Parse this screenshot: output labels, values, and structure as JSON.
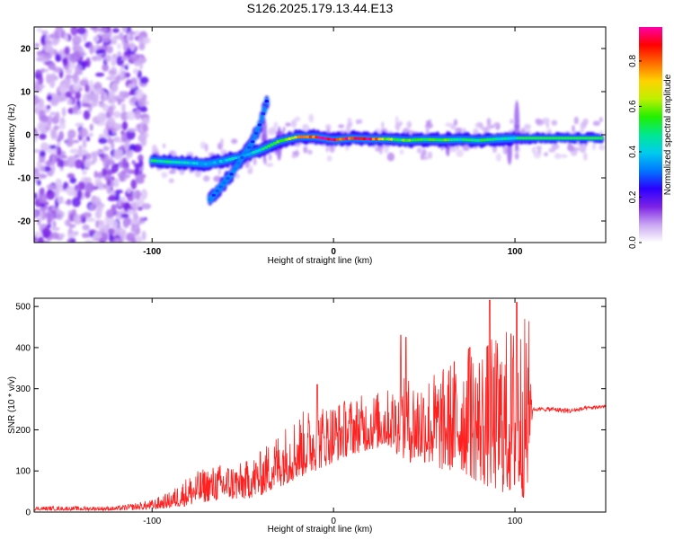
{
  "title": "S126.2025.179.13.44.E13",
  "chart_data": [
    {
      "type": "heatmap",
      "xlabel": "Height of straight line (km)",
      "ylabel": "Frequency (Hz)",
      "xlim": [
        -165,
        150
      ],
      "ylim": [
        -25,
        25
      ],
      "xticks": [
        -100,
        0,
        100
      ],
      "yticks": [
        -20,
        -10,
        0,
        10,
        20
      ],
      "ytick_labels": [
        "-20",
        "-10",
        "0",
        "10",
        "20"
      ],
      "colorbar": {
        "label": "Normalized spectral amplitude",
        "range": [
          0.0,
          0.95
        ],
        "ticks": [
          0.0,
          0.2,
          0.4,
          0.6,
          0.8
        ],
        "tick_labels": [
          "0.0",
          "0.2",
          "0.4",
          "0.6",
          "0.8"
        ],
        "colormap": [
          "#ffffff",
          "#c9a6f2",
          "#7d22e6",
          "#2b00ff",
          "#0077ff",
          "#00ccee",
          "#00e890",
          "#22f000",
          "#bff000",
          "#ffd200",
          "#ff6a00",
          "#ff0000",
          "#ff00aa"
        ]
      },
      "tracks": [
        {
          "x": [
            -100,
            -90,
            -80,
            -70,
            -60,
            -50,
            -40,
            -30,
            -20,
            -10,
            0,
            10,
            20,
            30,
            40,
            50,
            60,
            70,
            80,
            90,
            100,
            110,
            120,
            130,
            140,
            148
          ],
          "y": [
            -6,
            -6.3,
            -6.5,
            -6.8,
            -6,
            -5,
            -3.5,
            -1.5,
            -0.5,
            -0.5,
            -1.2,
            -0.8,
            -1,
            -1,
            -1.3,
            -1.1,
            -1.2,
            -1.1,
            -1.3,
            -1,
            -0.8,
            -0.8,
            -0.8,
            -0.8,
            -0.8,
            -0.8
          ],
          "amplitude": [
            0.5,
            0.45,
            0.4,
            0.35,
            0.4,
            0.4,
            0.45,
            0.55,
            0.75,
            0.85,
            0.95,
            0.85,
            0.9,
            0.6,
            0.55,
            0.55,
            0.55,
            0.5,
            0.5,
            0.45,
            0.45,
            0.5,
            0.5,
            0.5,
            0.5,
            0.5
          ]
        },
        {
          "x": [
            -68,
            -62,
            -56,
            -50,
            -45,
            -40,
            -36
          ],
          "y": [
            -15,
            -12,
            -9,
            -5,
            -2,
            3,
            9
          ],
          "amplitude": [
            0.3,
            0.3,
            0.3,
            0.3,
            0.3,
            0.3,
            0.25
          ]
        }
      ],
      "noise_region": {
        "x": [
          -165,
          -103
        ],
        "y": [
          -25,
          25
        ]
      }
    },
    {
      "type": "line",
      "xlabel": "Height of straight line (km)",
      "ylabel": "SNR (10 * v/v)",
      "xlim": [
        -165,
        150
      ],
      "ylim": [
        0,
        520
      ],
      "xticks": [
        -100,
        0,
        100
      ],
      "yticks": [
        0,
        100,
        200,
        300,
        400,
        500
      ],
      "line_color": "#ff2020",
      "envelope": {
        "x": [
          -165,
          -120,
          -100,
          -90,
          -80,
          -70,
          -60,
          -50,
          -40,
          -30,
          -20,
          -10,
          0,
          10,
          20,
          30,
          40,
          50,
          60,
          70,
          80,
          90,
          100,
          108,
          110,
          120,
          130,
          140,
          150
        ],
        "lower": [
          4,
          4,
          6,
          10,
          15,
          25,
          30,
          30,
          40,
          60,
          80,
          100,
          120,
          140,
          150,
          160,
          120,
          120,
          100,
          100,
          70,
          50,
          40,
          30,
          240,
          235,
          230,
          240,
          245
        ],
        "upper": [
          14,
          14,
          30,
          50,
          90,
          110,
          120,
          120,
          150,
          200,
          240,
          260,
          270,
          280,
          290,
          300,
          330,
          340,
          350,
          400,
          410,
          430,
          470,
          480,
          260,
          265,
          262,
          265,
          270
        ]
      },
      "peaks": [
        [
          -9,
          310
        ],
        [
          37,
          430
        ],
        [
          40,
          425
        ],
        [
          75,
          400
        ],
        [
          86,
          515
        ],
        [
          101,
          510
        ]
      ]
    }
  ]
}
